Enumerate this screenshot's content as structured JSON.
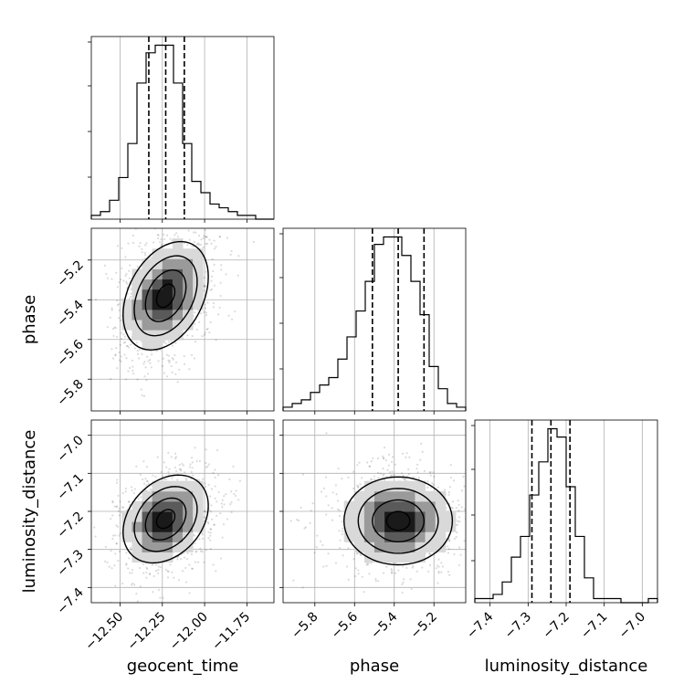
{
  "chart_data": {
    "type": "corner",
    "grid": true,
    "parameters": [
      "geocent_time",
      "phase",
      "luminosity_distance"
    ],
    "axis_labels": {
      "geocent_time": "geocent_time",
      "phase": "phase",
      "luminosity_distance": "luminosity_distance"
    },
    "ranges": {
      "geocent_time": [
        -12.67,
        -11.59
      ],
      "phase": [
        -5.96,
        -5.04
      ],
      "luminosity_distance": [
        -7.44,
        -6.96
      ]
    },
    "ticks": {
      "geocent_time": [
        {
          "value": -12.5,
          "label": "−12.50"
        },
        {
          "value": -12.25,
          "label": "−12.25"
        },
        {
          "value": -12.0,
          "label": "−12.00"
        },
        {
          "value": -11.75,
          "label": "−11.75"
        }
      ],
      "phase": [
        {
          "value": -5.8,
          "label": "−5.8"
        },
        {
          "value": -5.6,
          "label": "−5.6"
        },
        {
          "value": -5.4,
          "label": "−5.4"
        },
        {
          "value": -5.2,
          "label": "−5.2"
        }
      ],
      "luminosity_distance": [
        {
          "value": -7.4,
          "label": "−7.4"
        },
        {
          "value": -7.3,
          "label": "−7.3"
        },
        {
          "value": -7.2,
          "label": "−7.2"
        },
        {
          "value": -7.1,
          "label": "−7.1"
        },
        {
          "value": -7.0,
          "label": "−7.0"
        }
      ]
    },
    "marginals": {
      "geocent_time": {
        "bin_edges_range": [
          -12.67,
          -11.59
        ],
        "counts": [
          1,
          2,
          5,
          11,
          20,
          36,
          44,
          46,
          46,
          36,
          20,
          10,
          7,
          4,
          3,
          2,
          1,
          1,
          0,
          0
        ],
        "quantiles": [
          -12.33,
          -12.23,
          -12.12
        ]
      },
      "phase": {
        "bin_edges_range": [
          -5.96,
          -5.04
        ],
        "counts": [
          1,
          2,
          3,
          5,
          7,
          9,
          14,
          20,
          27,
          35,
          45,
          47,
          47,
          42,
          35,
          26,
          12,
          6,
          2,
          1
        ],
        "quantiles": [
          -5.51,
          -5.38,
          -5.25
        ]
      },
      "luminosity_distance": {
        "bin_edges_range": [
          -7.44,
          -6.96
        ],
        "counts": [
          1,
          1,
          2,
          5,
          11,
          16,
          26,
          34,
          42,
          40,
          28,
          16,
          6,
          1,
          1,
          1,
          0,
          0,
          0,
          1
        ],
        "quantiles": [
          -7.29,
          -7.24,
          -7.19
        ]
      }
    },
    "joint": [
      {
        "x": "geocent_time",
        "y": "phase",
        "mean": [
          -12.23,
          -5.38
        ],
        "sd": [
          0.12,
          0.13
        ],
        "corr": 0.35
      },
      {
        "x": "geocent_time",
        "y": "luminosity_distance",
        "mean": [
          -12.23,
          -7.22
        ],
        "sd": [
          0.12,
          0.055
        ],
        "corr": 0.3
      },
      {
        "x": "phase",
        "y": "luminosity_distance",
        "mean": [
          -5.38,
          -7.225
        ],
        "sd": [
          0.13,
          0.055
        ],
        "corr": 0.0
      }
    ]
  }
}
